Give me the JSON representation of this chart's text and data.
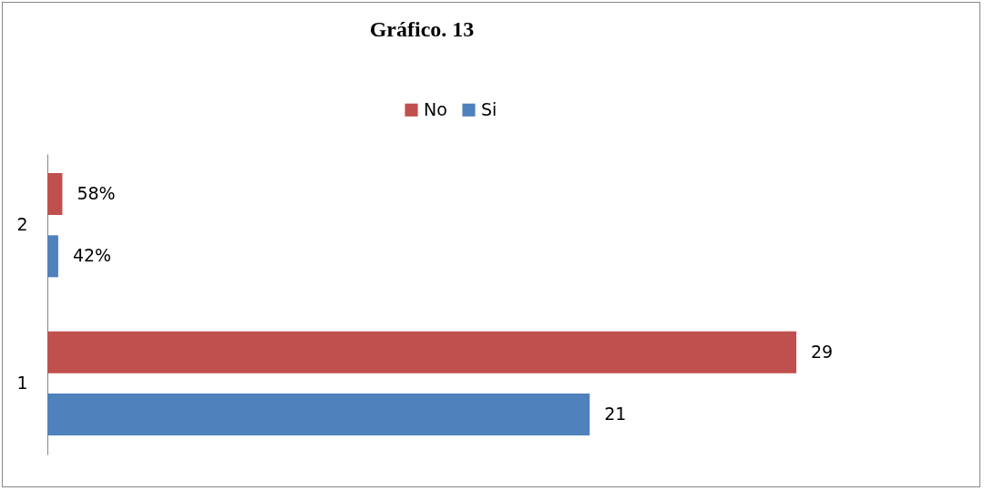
{
  "chart_data": {
    "type": "bar",
    "title": "Gráfico. 13",
    "orientation": "horizontal",
    "categories": [
      "2",
      "1"
    ],
    "legend": "top",
    "series": [
      {
        "name": "No",
        "color": "#c0504d",
        "values": [
          0.58,
          29
        ],
        "value_labels": [
          "58%",
          "29"
        ]
      },
      {
        "name": "Si",
        "color": "#4f81bd",
        "values": [
          0.42,
          21
        ],
        "value_labels": [
          "42%",
          "21"
        ]
      }
    ]
  }
}
